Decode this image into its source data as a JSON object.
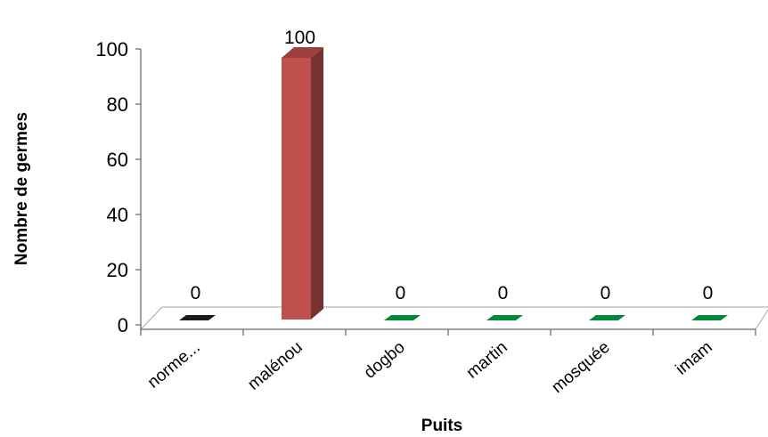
{
  "chart_data": {
    "type": "bar",
    "title": "",
    "xlabel": "Puits",
    "ylabel": "Nombre de germes",
    "categories": [
      "norme...",
      "malénou",
      "dogbo",
      "martin",
      "mosquée",
      "imam"
    ],
    "values": [
      0,
      100,
      0,
      0,
      0,
      0
    ],
    "data_labels": [
      "0",
      "100",
      "0",
      "0",
      "0",
      "0"
    ],
    "ylim": [
      0,
      100
    ],
    "yticks": [
      "0",
      "20",
      "40",
      "60",
      "80",
      "100"
    ],
    "grid": false,
    "legend": "none",
    "style": "3d-column",
    "colors": {
      "norme...": "#1a1a1a",
      "malénou": "#c0504d",
      "dogbo": "#00873a",
      "martin": "#00873a",
      "mosquée": "#00873a",
      "imam": "#00873a"
    }
  }
}
